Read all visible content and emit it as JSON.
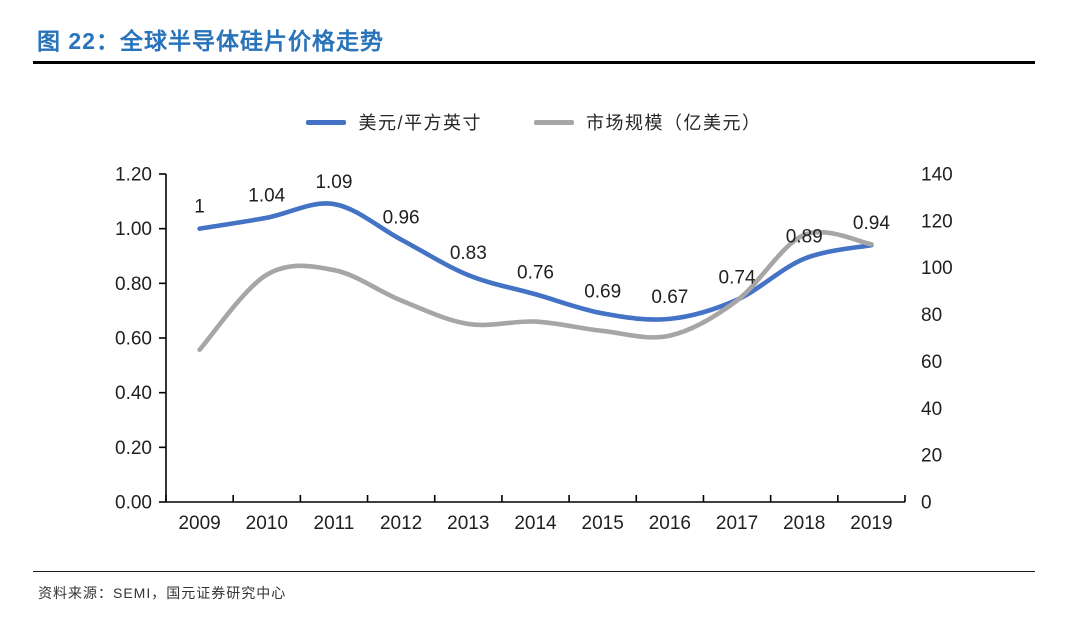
{
  "figure": {
    "title": "图 22：全球半导体硅片价格走势",
    "title_color": "#2873B9",
    "source": "资料来源：SEMI，国元证券研究中心"
  },
  "chart_data": {
    "type": "line",
    "title": "全球半导体硅片价格走势",
    "smooth": true,
    "grid": false,
    "legend_position": "top",
    "categories": [
      "2009",
      "2010",
      "2011",
      "2012",
      "2013",
      "2014",
      "2015",
      "2016",
      "2017",
      "2018",
      "2019"
    ],
    "series": [
      {
        "name": "美元/平方英寸",
        "axis": "left",
        "color": "#4472C4",
        "values": [
          1,
          1.04,
          1.09,
          0.96,
          0.83,
          0.76,
          0.69,
          0.67,
          0.74,
          0.89,
          0.94
        ],
        "data_labels": [
          "1",
          "1.04",
          "1.09",
          "0.96",
          "0.83",
          "0.76",
          "0.69",
          "0.67",
          "0.74",
          "0.89",
          "0.94"
        ]
      },
      {
        "name": "市场规模（亿美元）",
        "axis": "right",
        "color": "#A6A6A6",
        "values": [
          65,
          97,
          99,
          86,
          76,
          77,
          73,
          71,
          86,
          114,
          110
        ],
        "data_labels": null
      }
    ],
    "left_axis": {
      "min": 0,
      "max": 1.2,
      "tick_step": 0.2,
      "ticks": [
        "0.00",
        "0.20",
        "0.40",
        "0.60",
        "0.80",
        "1.00",
        "1.20"
      ]
    },
    "right_axis": {
      "min": 0,
      "max": 140,
      "tick_step": 20,
      "ticks": [
        "0",
        "20",
        "40",
        "60",
        "80",
        "100",
        "120",
        "140"
      ]
    }
  }
}
